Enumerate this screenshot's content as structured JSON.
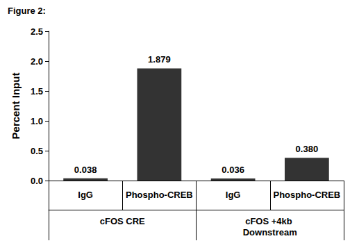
{
  "chart_data": {
    "type": "bar",
    "title": "Figure 2:",
    "y_label": "Percent Input",
    "categories": [
      "IgG",
      "Phospho-CREB",
      "IgG",
      "Phospho-CREB"
    ],
    "groups": [
      "cFOS CRE",
      "cFOS +4kb Downstream"
    ],
    "values": [
      0.038,
      1.879,
      0.036,
      0.38
    ],
    "value_labels": [
      "0.038",
      "1.879",
      "0.036",
      "0.380"
    ],
    "colors": [
      "#333333",
      "#333333",
      "#333333",
      "#333333"
    ],
    "ylim": [
      0,
      2.5
    ],
    "yticks": [
      {
        "value": 0,
        "label": "0.0"
      },
      0.5,
      {
        "value": 1,
        "label": "1.0"
      },
      1.5,
      {
        "value": 2,
        "label": "2.0"
      },
      2.5
    ],
    "grid": false,
    "data_labels": true
  }
}
